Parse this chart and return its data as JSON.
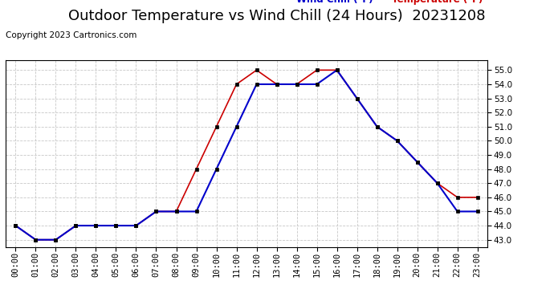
{
  "title": "Outdoor Temperature vs Wind Chill (24 Hours)  20231208",
  "copyright": "Copyright 2023 Cartronics.com",
  "legend_wind_chill": "Wind Chill (°F)",
  "legend_temperature": "Temperature (°F)",
  "hours": [
    "00:00",
    "01:00",
    "02:00",
    "03:00",
    "04:00",
    "05:00",
    "06:00",
    "07:00",
    "08:00",
    "09:00",
    "10:00",
    "11:00",
    "12:00",
    "13:00",
    "14:00",
    "15:00",
    "16:00",
    "17:00",
    "18:00",
    "19:00",
    "20:00",
    "21:00",
    "22:00",
    "23:00"
  ],
  "temperature": [
    44.0,
    43.0,
    43.0,
    44.0,
    44.0,
    44.0,
    44.0,
    45.0,
    45.0,
    48.0,
    51.0,
    54.0,
    55.0,
    54.0,
    54.0,
    55.0,
    55.0,
    53.0,
    51.0,
    50.0,
    48.5,
    47.0,
    46.0,
    46.0
  ],
  "wind_chill": [
    44.0,
    43.0,
    43.0,
    44.0,
    44.0,
    44.0,
    44.0,
    45.0,
    45.0,
    45.0,
    48.0,
    51.0,
    54.0,
    54.0,
    54.0,
    54.0,
    55.0,
    53.0,
    51.0,
    50.0,
    48.5,
    47.0,
    45.0,
    45.0
  ],
  "temp_color": "#cc0000",
  "wind_color": "#0000cc",
  "marker_color": "#000000",
  "yticks": [
    43.0,
    44.0,
    45.0,
    46.0,
    47.0,
    48.0,
    49.0,
    50.0,
    51.0,
    52.0,
    53.0,
    54.0,
    55.0
  ],
  "bg_color": "#ffffff",
  "grid_color": "#c8c8c8",
  "title_fontsize": 13,
  "label_fontsize": 7.5,
  "copyright_fontsize": 7.5,
  "legend_fontsize": 8.5
}
